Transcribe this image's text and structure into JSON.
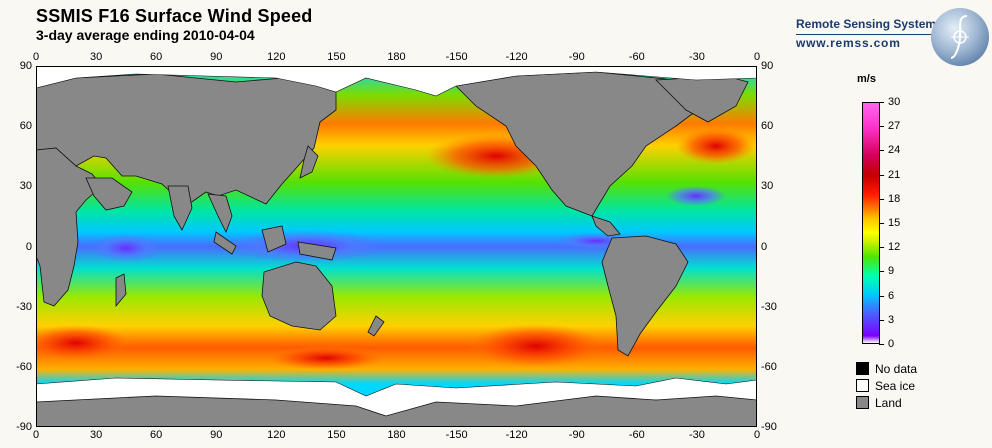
{
  "header": {
    "title": "SSMIS F16 Surface Wind Speed",
    "subtitle": "3-day average ending 2010-04-04"
  },
  "brand": {
    "name": "Remote Sensing Systems",
    "url": "www.remss.com"
  },
  "map": {
    "projection": "equirectangular",
    "lon_range": [
      0,
      360
    ],
    "lat_range": [
      -90,
      90
    ],
    "x_tick_labels": [
      "0",
      "30",
      "60",
      "90",
      "120",
      "150",
      "180",
      "-150",
      "-120",
      "-90",
      "-60",
      "-30",
      "0"
    ],
    "y_tick_labels": [
      "90",
      "60",
      "30",
      "0",
      "-30",
      "-60",
      "-90"
    ],
    "background": "#888888",
    "seaice_color": "#ffffff"
  },
  "colorbar": {
    "unit": "m/s",
    "min": 0,
    "max": 30,
    "tick_labels": [
      "30",
      "27",
      "24",
      "21",
      "18",
      "15",
      "12",
      "9",
      "6",
      "3",
      "0"
    ]
  },
  "legend": [
    {
      "label": "No data",
      "color": "#000000"
    },
    {
      "label": "Sea ice",
      "color": "#ffffff"
    },
    {
      "label": "Land",
      "color": "#888888"
    }
  ]
}
